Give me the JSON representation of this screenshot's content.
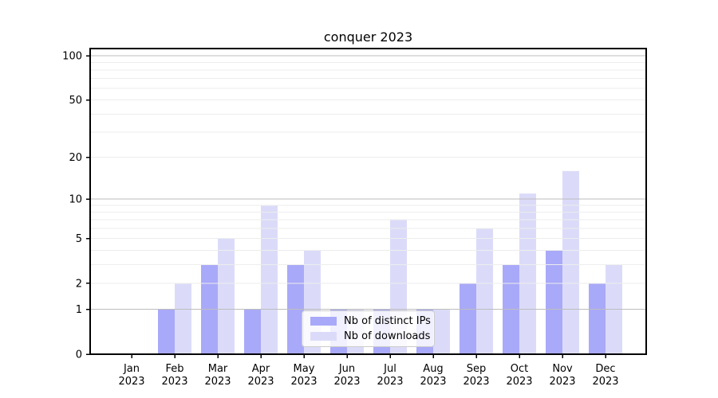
{
  "chart_data": {
    "type": "bar",
    "title": "conquer 2023",
    "categories": [
      "Jan 2023",
      "Feb 2023",
      "Mar 2023",
      "Apr 2023",
      "May 2023",
      "Jun 2023",
      "Jul 2023",
      "Aug 2023",
      "Sep 2023",
      "Oct 2023",
      "Nov 2023",
      "Dec 2023"
    ],
    "series": [
      {
        "name": "Nb of distinct IPs",
        "color": "#a9a9f9",
        "values": [
          0,
          1,
          3,
          1,
          3,
          1,
          1,
          1,
          2,
          3,
          4,
          2
        ]
      },
      {
        "name": "Nb of downloads",
        "color": "#dbdbf9",
        "values": [
          0,
          2,
          5,
          9,
          4,
          1,
          7,
          1,
          6,
          11,
          16,
          3
        ]
      }
    ],
    "xlabel": "",
    "ylabel": "",
    "yscale": "log1p",
    "ylim": [
      0,
      112
    ],
    "yticks": [
      0,
      1,
      2,
      5,
      10,
      20,
      50,
      100
    ],
    "grid": {
      "on": true,
      "major_lines": [
        1,
        10,
        100
      ],
      "minor_lines": [
        2,
        3,
        4,
        5,
        6,
        7,
        8,
        9,
        20,
        30,
        40,
        50,
        60,
        70,
        80,
        90
      ],
      "major_color": "#bdbdbd",
      "minor_color": "#ededed"
    },
    "legend_position": "lower center",
    "axis_color": "#000000"
  }
}
